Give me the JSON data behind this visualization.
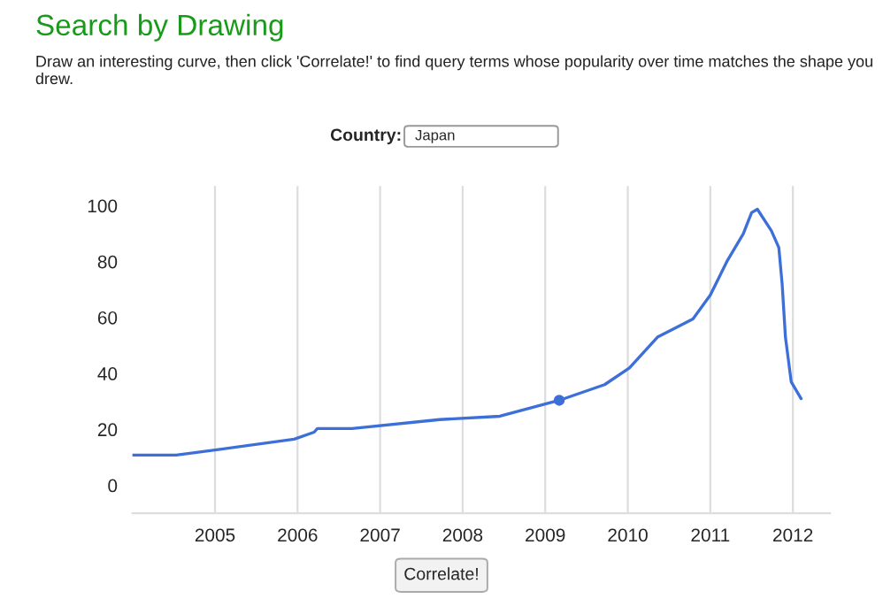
{
  "chart_data": {
    "type": "line",
    "title": "Search by Drawing",
    "subtitle": "Draw an interesting curve, then click 'Correlate!' to find query terms whose popularity over time matches the shape you drew.",
    "annotations": [
      "Country:",
      "Japan",
      "Correlate!"
    ],
    "series": [
      {
        "color": "#3d6fd8",
        "x": [
          2004.0,
          2004.53,
          2005.02,
          2005.96,
          2006.2,
          2006.24,
          2006.66,
          2007.72,
          2008.45,
          2009.17,
          2009.72,
          2010.02,
          2010.36,
          2010.79,
          2011.0,
          2011.2,
          2011.4,
          2011.5,
          2011.57,
          2011.74,
          2011.83,
          2011.87,
          2011.91,
          2011.98,
          2012.1
        ],
        "values": [
          10.8,
          10.8,
          12.7,
          16.5,
          19,
          20.3,
          20.3,
          23.5,
          24.7,
          30.4,
          36,
          42,
          53,
          59.5,
          68,
          80,
          90,
          97.5,
          98.7,
          91,
          85,
          72,
          53,
          37,
          31
        ]
      },
      {
        "type": "scatter",
        "color": "#3d6fd8",
        "marker": "circle",
        "x": [
          2009.17
        ],
        "values": [
          30.4
        ]
      }
    ],
    "xlim": [
      2004.0,
      2012.45
    ],
    "xticks": [
      2005,
      2006,
      2007,
      2008,
      2009,
      2010,
      2011,
      2012
    ],
    "ylim": [
      -10,
      107
    ],
    "yticks": [
      0,
      20,
      40,
      60,
      80,
      100
    ],
    "grid": "x"
  }
}
